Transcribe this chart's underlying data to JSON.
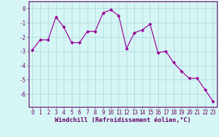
{
  "x": [
    0,
    1,
    2,
    3,
    4,
    5,
    6,
    7,
    8,
    9,
    10,
    11,
    12,
    13,
    14,
    15,
    16,
    17,
    18,
    19,
    20,
    21,
    22,
    23
  ],
  "y": [
    -2.9,
    -2.2,
    -2.2,
    -0.6,
    -1.3,
    -2.4,
    -2.4,
    -1.6,
    -1.6,
    -0.3,
    -0.1,
    -0.5,
    -2.8,
    -1.7,
    -1.5,
    -1.1,
    -3.1,
    -3.0,
    -3.8,
    -4.4,
    -4.9,
    -4.9,
    -5.7,
    -6.5
  ],
  "line_color": "#990099",
  "marker": "D",
  "marker_size": 2.2,
  "bg_color": "#d6f5f5",
  "grid_color": "#aadddd",
  "xlabel": "Windchill (Refroidissement éolien,°C)",
  "xlabel_fontsize": 6.5,
  "tick_fontsize": 5.5,
  "ylim": [
    -6.9,
    0.5
  ],
  "yticks": [
    0,
    -1,
    -2,
    -3,
    -4,
    -5,
    -6
  ],
  "xlim": [
    -0.5,
    23.5
  ],
  "xticks": [
    0,
    1,
    2,
    3,
    4,
    5,
    6,
    7,
    8,
    9,
    10,
    11,
    12,
    13,
    14,
    15,
    16,
    17,
    18,
    19,
    20,
    21,
    22,
    23
  ]
}
